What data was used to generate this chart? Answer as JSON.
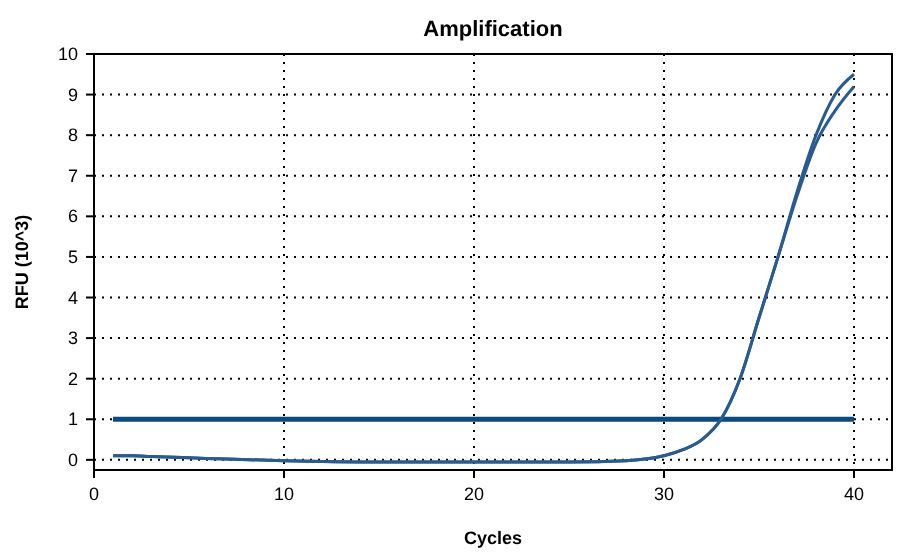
{
  "chart_data": {
    "type": "line",
    "title": "Amplification",
    "xlabel": "Cycles",
    "ylabel": "RFU (10^3)",
    "x": [
      1,
      2,
      3,
      5,
      7,
      10,
      15,
      20,
      25,
      28,
      29,
      30,
      31,
      32,
      33,
      34,
      35,
      36,
      37,
      38,
      39,
      40
    ],
    "series": [
      {
        "color": "#2a5b8c",
        "values": [
          0.1,
          0.1,
          0.08,
          0.05,
          0.02,
          -0.02,
          -0.05,
          -0.05,
          -0.05,
          -0.02,
          0.02,
          0.1,
          0.25,
          0.5,
          1.0,
          2.0,
          3.5,
          5.0,
          6.5,
          7.8,
          8.6,
          9.2
        ]
      },
      {
        "color": "#2a5b8c",
        "values": [
          0.1,
          0.1,
          0.08,
          0.05,
          0.02,
          -0.02,
          -0.05,
          -0.05,
          -0.05,
          -0.02,
          0.02,
          0.1,
          0.25,
          0.5,
          1.0,
          2.0,
          3.5,
          5.0,
          6.6,
          8.0,
          9.0,
          9.5
        ]
      }
    ],
    "ref_lines": [
      {
        "axis": "y",
        "value": 1,
        "color": "#0b4a7e"
      }
    ],
    "xlim": [
      0,
      42
    ],
    "xticks": [
      0,
      10,
      20,
      30,
      40
    ],
    "ylim": [
      -0.25,
      10
    ],
    "yticks": [
      0,
      1,
      2,
      3,
      4,
      5,
      6,
      7,
      8,
      9,
      10
    ],
    "grid": true,
    "marker": "none",
    "line_style": "solid"
  }
}
